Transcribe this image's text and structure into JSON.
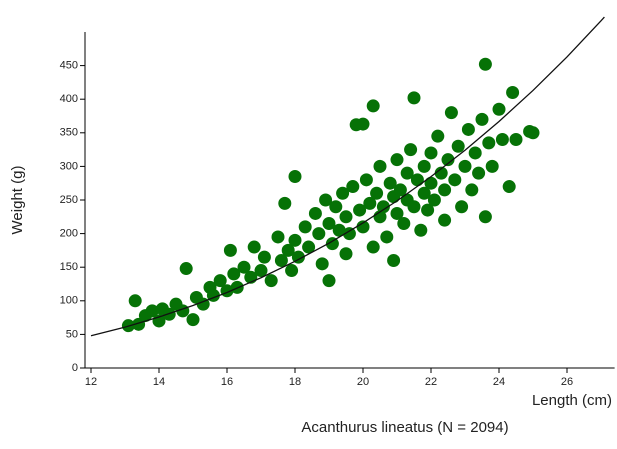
{
  "chart_data": {
    "type": "scatter",
    "title": "Acanthurus lineatus (N = 2094)",
    "x_label": "Length (cm)",
    "y_label": "Weight (g)",
    "color": "#067206",
    "x": [
      13.1,
      13.3,
      13.4,
      13.6,
      13.8,
      14.0,
      14.1,
      14.3,
      14.5,
      14.7,
      14.8,
      15.0,
      15.1,
      15.3,
      15.5,
      15.6,
      15.8,
      16.0,
      16.1,
      16.2,
      16.3,
      16.5,
      16.7,
      16.8,
      17.0,
      17.1,
      17.3,
      17.5,
      17.6,
      17.7,
      17.8,
      17.9,
      18.0,
      18.0,
      18.1,
      18.3,
      18.4,
      18.6,
      18.7,
      18.8,
      18.9,
      19.0,
      19.0,
      19.1,
      19.2,
      19.3,
      19.4,
      19.5,
      19.5,
      19.6,
      19.7,
      19.8,
      19.9,
      20.0,
      20.0,
      20.1,
      20.2,
      20.3,
      20.3,
      20.4,
      20.5,
      20.5,
      20.6,
      20.7,
      20.8,
      20.9,
      20.9,
      21.0,
      21.0,
      21.1,
      21.2,
      21.3,
      21.3,
      21.4,
      21.5,
      21.5,
      21.6,
      21.7,
      21.8,
      21.8,
      21.9,
      22.0,
      22.0,
      22.1,
      22.2,
      22.3,
      22.4,
      22.4,
      22.5,
      22.6,
      22.7,
      22.8,
      22.9,
      23.0,
      23.1,
      23.2,
      23.3,
      23.4,
      23.5,
      23.6,
      23.6,
      23.7,
      23.8,
      24.0,
      24.1,
      24.3,
      24.4,
      24.5,
      24.9,
      25.0
    ],
    "y": [
      63,
      100,
      65,
      78,
      85,
      70,
      88,
      80,
      95,
      85,
      148,
      72,
      105,
      95,
      120,
      108,
      130,
      115,
      175,
      140,
      120,
      150,
      135,
      180,
      145,
      165,
      130,
      195,
      160,
      245,
      175,
      145,
      285,
      190,
      165,
      210,
      180,
      230,
      200,
      155,
      250,
      215,
      130,
      185,
      240,
      205,
      260,
      225,
      170,
      200,
      270,
      362,
      235,
      363,
      210,
      280,
      245,
      390,
      180,
      260,
      225,
      300,
      240,
      195,
      275,
      255,
      160,
      230,
      310,
      265,
      215,
      290,
      250,
      325,
      402,
      240,
      280,
      205,
      300,
      260,
      235,
      320,
      275,
      250,
      345,
      290,
      220,
      265,
      310,
      380,
      280,
      330,
      240,
      300,
      355,
      265,
      320,
      290,
      370,
      452,
      225,
      335,
      300,
      385,
      340,
      270,
      410,
      340,
      352,
      350
    ],
    "fit": {
      "x": [
        12,
        13,
        14,
        15,
        16,
        17,
        18,
        19,
        20,
        21,
        22,
        23,
        24,
        25,
        26,
        27,
        27.1
      ],
      "y": [
        48,
        60.8,
        75.9,
        93.0,
        112.4,
        134.3,
        158.7,
        185.8,
        215.8,
        248.7,
        284.8,
        324.1,
        366.8,
        413.0,
        462.9,
        516.6,
        522.2
      ]
    },
    "xlim": [
      12,
      27.4
    ],
    "ylim": [
      0,
      500
    ],
    "xticks": [
      12,
      14,
      16,
      18,
      20,
      22,
      24,
      26
    ],
    "yticks": [
      0,
      50,
      100,
      150,
      200,
      250,
      300,
      350,
      400,
      450
    ]
  }
}
